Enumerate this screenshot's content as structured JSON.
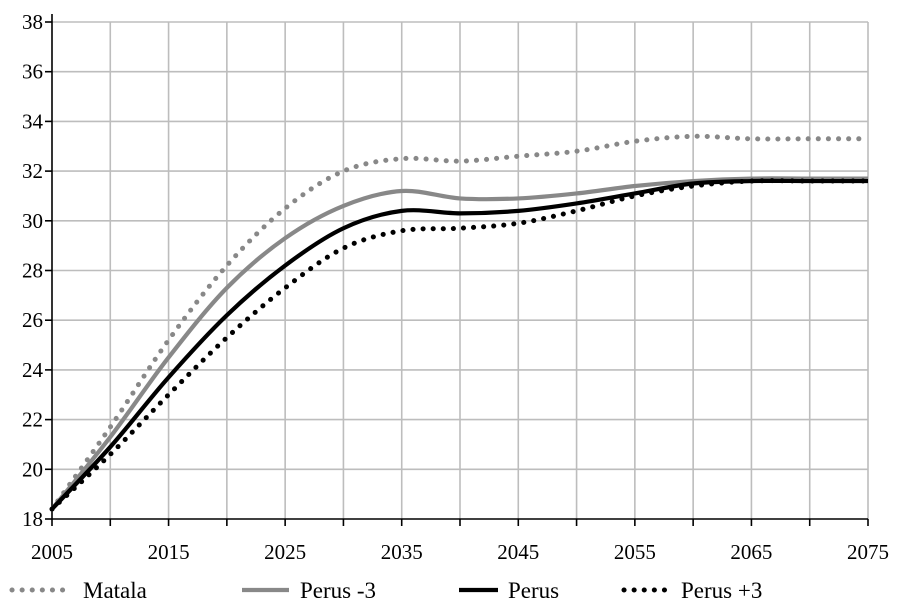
{
  "chart_data": {
    "type": "line",
    "title": "",
    "xlabel": "",
    "ylabel": "",
    "xlim": [
      2005,
      2075
    ],
    "ylim": [
      18,
      38
    ],
    "x_ticks": [
      2005,
      2015,
      2025,
      2035,
      2045,
      2055,
      2065,
      2075
    ],
    "y_ticks": [
      18,
      20,
      22,
      24,
      26,
      28,
      30,
      32,
      34,
      36,
      38
    ],
    "x_ticklabels": [
      "2005",
      "2015",
      "2025",
      "2035",
      "2045",
      "2055",
      "2065",
      "2075"
    ],
    "y_ticklabels": [
      "18",
      "20",
      "22",
      "24",
      "26",
      "28",
      "30",
      "32",
      "34",
      "36",
      "38"
    ],
    "grid": true,
    "legend_position": "bottom",
    "x": [
      2005,
      2010,
      2015,
      2020,
      2025,
      2030,
      2035,
      2040,
      2045,
      2050,
      2055,
      2060,
      2065,
      2070,
      2075
    ],
    "series": [
      {
        "name": "Matala",
        "style": "dotted",
        "color": "#888888",
        "values": [
          18.4,
          21.7,
          25.2,
          28.2,
          30.5,
          32.0,
          32.5,
          32.4,
          32.6,
          32.8,
          33.2,
          33.4,
          33.3,
          33.3,
          33.3
        ]
      },
      {
        "name": "Perus -3",
        "style": "solid",
        "color": "#888888",
        "values": [
          18.4,
          21.3,
          24.5,
          27.3,
          29.3,
          30.6,
          31.2,
          30.9,
          30.9,
          31.1,
          31.4,
          31.6,
          31.7,
          31.7,
          31.7
        ]
      },
      {
        "name": "Perus",
        "style": "solid",
        "color": "#000000",
        "values": [
          18.4,
          20.9,
          23.7,
          26.2,
          28.2,
          29.7,
          30.4,
          30.3,
          30.4,
          30.7,
          31.1,
          31.5,
          31.6,
          31.6,
          31.6
        ]
      },
      {
        "name": "Perus +3",
        "style": "dotted",
        "color": "#000000",
        "values": [
          18.4,
          20.6,
          23.0,
          25.3,
          27.3,
          28.9,
          29.6,
          29.7,
          29.9,
          30.4,
          31.0,
          31.4,
          31.6,
          31.6,
          31.6
        ]
      }
    ]
  }
}
